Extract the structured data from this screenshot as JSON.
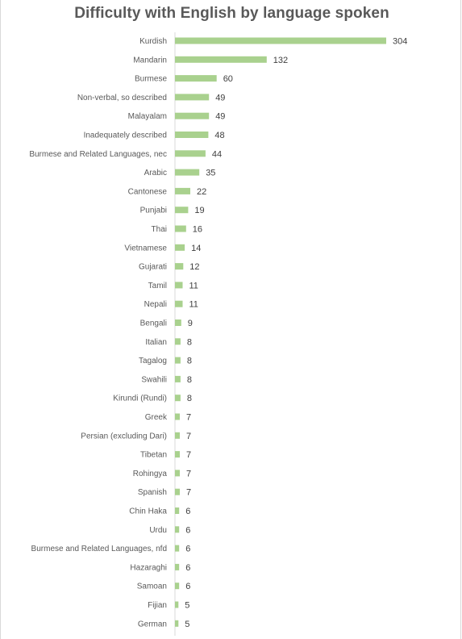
{
  "chart_data": {
    "type": "bar",
    "orientation": "horizontal",
    "title": "Difficulty with English by language spoken",
    "xlabel": "",
    "ylabel": "",
    "grid": false,
    "legend": "none",
    "bar_color": "#a9d18e",
    "categories": [
      "Kurdish",
      "Mandarin",
      "Burmese",
      "Non-verbal, so described",
      "Malayalam",
      "Inadequately described",
      "Burmese and Related Languages, nec",
      "Arabic",
      "Cantonese",
      "Punjabi",
      "Thai",
      "Vietnamese",
      "Gujarati",
      "Tamil",
      "Nepali",
      "Bengali",
      "Italian",
      "Tagalog",
      "Swahili",
      "Kirundi (Rundi)",
      "Greek",
      "Persian (excluding Dari)",
      "Tibetan",
      "Rohingya",
      "Spanish",
      "Chin Haka",
      "Urdu",
      "Burmese and Related Languages, nfd",
      "Hazaraghi",
      "Samoan",
      "Fijian",
      "German"
    ],
    "values": [
      304,
      132,
      60,
      49,
      49,
      48,
      44,
      35,
      22,
      19,
      16,
      14,
      12,
      11,
      11,
      9,
      8,
      8,
      8,
      8,
      7,
      7,
      7,
      7,
      7,
      6,
      6,
      6,
      6,
      6,
      5,
      5
    ],
    "xlim": [
      0,
      304
    ]
  }
}
